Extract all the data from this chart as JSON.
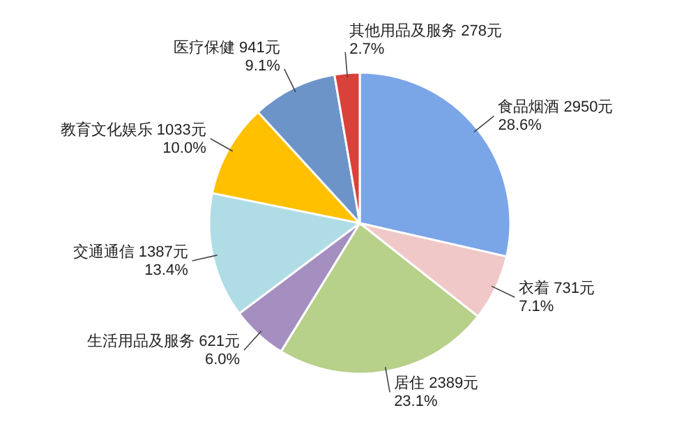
{
  "chart_data": {
    "type": "pie",
    "categories": [
      "食品烟酒",
      "衣着",
      "居住",
      "生活用品及服务",
      "交通通信",
      "教育文化娱乐",
      "医疗保健",
      "其他用品及服务"
    ],
    "values": [
      2950,
      731,
      2389,
      621,
      1387,
      1033,
      941,
      278
    ],
    "colors": [
      "#7aa6e8",
      "#f0c8c8",
      "#b7d08a",
      "#a48fc0",
      "#b0dce6",
      "#ffc000",
      "#6d94c8",
      "#d9423a"
    ],
    "value_labels": [
      "2950元\n28.6%",
      "731元\n7.1%",
      "2389元\n23.1%",
      "621元\n6.0%",
      "1387元\n13.4%",
      "1033元\n10.0%",
      "941元\n9.1%",
      "278元\n2.7%"
    ]
  }
}
